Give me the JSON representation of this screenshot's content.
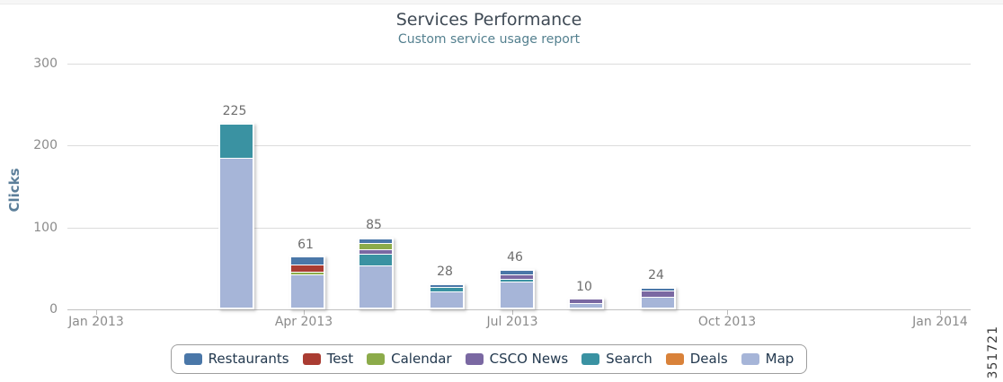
{
  "chart_data": {
    "type": "stacked-bar",
    "title": "Services Performance",
    "subtitle": "Custom service usage report",
    "ylabel": "Clicks",
    "ylim": [
      0,
      300
    ],
    "yticks": [
      300,
      200,
      100,
      0
    ],
    "xticks": [
      "Jan 2013",
      "Apr 2013",
      "Jul 2013",
      "Oct 2013",
      "Jan 2014"
    ],
    "grid": true,
    "legend_position": "bottom",
    "legend": [
      {
        "label": "Restaurants",
        "color": "#4a77a8"
      },
      {
        "label": "Test",
        "color": "#aa3c32"
      },
      {
        "label": "Calendar",
        "color": "#8cab4a"
      },
      {
        "label": "CSCO News",
        "color": "#7a68a2"
      },
      {
        "label": "Search",
        "color": "#3a92a2"
      },
      {
        "label": "Deals",
        "color": "#d9823a"
      },
      {
        "label": "Map",
        "color": "#a6b5d8"
      }
    ],
    "bars": [
      {
        "month": "Mar 2013",
        "total": 225,
        "segments": [
          {
            "name": "Map",
            "value": 183
          },
          {
            "name": "Search",
            "value": 42
          }
        ]
      },
      {
        "month": "Apr 2013",
        "total": 61,
        "segments": [
          {
            "name": "Map",
            "value": 40
          },
          {
            "name": "Calendar",
            "value": 2
          },
          {
            "name": "Test",
            "value": 9
          },
          {
            "name": "Restaurants",
            "value": 10
          }
        ]
      },
      {
        "month": "May 2013",
        "total": 85,
        "segments": [
          {
            "name": "Map",
            "value": 52
          },
          {
            "name": "Search",
            "value": 14
          },
          {
            "name": "CSCO News",
            "value": 5
          },
          {
            "name": "Calendar",
            "value": 8
          },
          {
            "name": "Restaurants",
            "value": 6
          }
        ]
      },
      {
        "month": "Jun 2013",
        "total": 28,
        "segments": [
          {
            "name": "Map",
            "value": 20
          },
          {
            "name": "Search",
            "value": 5
          },
          {
            "name": "Restaurants",
            "value": 3
          }
        ]
      },
      {
        "month": "Jul 2013",
        "total": 46,
        "segments": [
          {
            "name": "Map",
            "value": 32
          },
          {
            "name": "Search",
            "value": 3
          },
          {
            "name": "CSCO News",
            "value": 6
          },
          {
            "name": "Restaurants",
            "value": 5
          }
        ]
      },
      {
        "month": "Aug 2013",
        "total": 10,
        "segments": [
          {
            "name": "Map",
            "value": 5
          },
          {
            "name": "CSCO News",
            "value": 5
          }
        ]
      },
      {
        "month": "Sep 2013",
        "total": 24,
        "segments": [
          {
            "name": "Map",
            "value": 13
          },
          {
            "name": "CSCO News",
            "value": 8
          },
          {
            "name": "Restaurants",
            "value": 3
          }
        ]
      }
    ],
    "figure_number": "351721"
  }
}
